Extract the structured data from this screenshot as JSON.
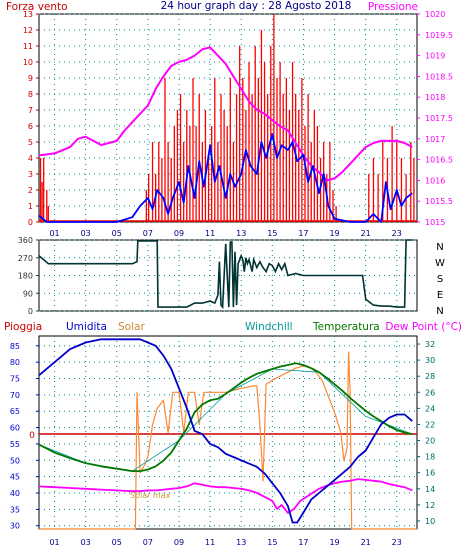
{
  "page": {
    "title": "24 hour graph day : 28 Agosto 2018",
    "background": "#ffffff"
  },
  "colors": {
    "wind": "#ff0000",
    "pressure": "#ff00ff",
    "avg_wind": "#0000ff",
    "direction": "#003333",
    "rain": "#cc0000",
    "humidity": "#0000cc",
    "solar": "#ff8833",
    "windchill": "#009999",
    "temperature": "#007700",
    "dewpoint": "#ff00ff",
    "grid": "#008888",
    "left_axis": "#cc0000",
    "right_axis_top": "#ff00ff",
    "right_axis_bottom": "#006666",
    "mid_axis": "#333333",
    "hour_axis": "#000088"
  },
  "hours": [
    "01",
    "03",
    "05",
    "07",
    "09",
    "11",
    "13",
    "15",
    "17",
    "19",
    "21",
    "23"
  ],
  "chart_data": [
    {
      "type": "line",
      "id": "wind_pressure",
      "title": "24 hour graph day : 28 Agosto 2018",
      "left_axis_label": "Forza vento",
      "right_axis_label": "Pressione",
      "left_ticks": [
        "0",
        "1",
        "2",
        "3",
        "4",
        "5",
        "6",
        "7",
        "8",
        "9",
        "10",
        "11",
        "12",
        "13"
      ],
      "right_ticks": [
        "1015",
        "1015.5",
        "1016",
        "1016.5",
        "1017",
        "1017.5",
        "1018",
        "1018.5",
        "1019",
        "1019.5",
        "1020"
      ],
      "x_range": [
        0,
        24.3
      ],
      "left_range": [
        0,
        13
      ],
      "right_range": [
        1015,
        1020
      ],
      "series": [
        {
          "name": "Pressione",
          "axis": "right",
          "x": [
            0,
            1,
            2,
            2.5,
            3,
            3.5,
            4,
            5,
            5.5,
            6,
            6.5,
            7,
            7.5,
            8,
            8.5,
            9,
            9.5,
            10,
            10.5,
            11,
            11.5,
            12,
            12.5,
            13,
            13.5,
            14,
            14.5,
            15,
            15.5,
            16,
            16.5,
            17,
            17.5,
            18,
            18.5,
            19,
            19.5,
            20,
            20.5,
            21,
            21.5,
            22,
            22.5,
            23,
            23.5,
            24
          ],
          "y": [
            1016.6,
            1016.65,
            1016.8,
            1017,
            1017.05,
            1016.95,
            1016.85,
            1016.95,
            1017.2,
            1017.4,
            1017.6,
            1017.8,
            1018.2,
            1018.5,
            1018.75,
            1018.85,
            1018.9,
            1019,
            1019.15,
            1019.2,
            1019,
            1018.8,
            1018.5,
            1018.2,
            1017.9,
            1017.7,
            1017.6,
            1017.45,
            1017.3,
            1017.2,
            1016.9,
            1016.6,
            1016.35,
            1016.2,
            1016,
            1016.05,
            1016.2,
            1016.4,
            1016.6,
            1016.8,
            1016.9,
            1016.95,
            1016.95,
            1016.95,
            1016.9,
            1016.8
          ]
        },
        {
          "name": "Vento medio",
          "axis": "left",
          "x": [
            0,
            0.5,
            1,
            2,
            3,
            4,
            5,
            6,
            6.5,
            7,
            7.3,
            7.6,
            8,
            8.3,
            8.6,
            9,
            9.3,
            9.6,
            10,
            10.3,
            10.6,
            11,
            11.3,
            11.6,
            12,
            12.3,
            12.6,
            13,
            13.3,
            13.6,
            14,
            14.3,
            14.6,
            15,
            15.3,
            15.6,
            16,
            16.3,
            16.6,
            17,
            17.3,
            17.6,
            18,
            18.3,
            18.6,
            19,
            20,
            21,
            21.5,
            22,
            22.3,
            22.6,
            23,
            23.3,
            23.6,
            24
          ],
          "y": [
            0.4,
            0,
            0,
            0,
            0,
            0,
            0,
            0.3,
            1,
            1.5,
            0.8,
            2,
            1.5,
            0.5,
            1.5,
            2.5,
            1.2,
            3.5,
            1.5,
            3.8,
            2.2,
            4.8,
            2.5,
            3.5,
            1.5,
            3,
            2.2,
            3,
            4.5,
            3.5,
            3,
            5,
            4,
            5.5,
            4,
            4.8,
            4.5,
            5,
            3.8,
            4.2,
            2.5,
            3.5,
            1.8,
            3,
            1,
            0.2,
            0,
            0,
            0.5,
            0,
            2.5,
            0.8,
            2,
            1,
            1.5,
            1.8
          ]
        },
        {
          "name": "Forza vento",
          "axis": "left",
          "style": "bars",
          "x": [
            0.1,
            0.2,
            0.3,
            0.5,
            0.6,
            6.9,
            7.05,
            7.3,
            7.5,
            7.7,
            7.9,
            8.1,
            8.3,
            8.5,
            8.7,
            8.9,
            9.1,
            9.3,
            9.5,
            9.7,
            9.9,
            10.1,
            10.3,
            10.5,
            10.7,
            10.9,
            11.1,
            11.3,
            11.5,
            11.7,
            11.9,
            12.1,
            12.3,
            12.5,
            12.7,
            12.9,
            13.1,
            13.3,
            13.5,
            13.7,
            13.9,
            14.1,
            14.3,
            14.5,
            14.7,
            14.9,
            15.1,
            15.3,
            15.5,
            15.7,
            15.9,
            16.1,
            16.3,
            16.5,
            16.7,
            16.9,
            17.1,
            17.3,
            17.5,
            17.7,
            17.9,
            18.1,
            18.3,
            18.5,
            18.7,
            18.9,
            19.1,
            21.2,
            21.5,
            21.8,
            22.1,
            22.4,
            22.7,
            23,
            23.3,
            23.6,
            23.9,
            24.1
          ],
          "y": [
            4,
            2.5,
            4,
            2,
            1,
            2,
            3,
            5,
            3,
            5,
            4,
            9,
            5,
            4,
            6,
            7,
            8,
            5,
            7,
            6,
            9,
            6,
            8,
            5,
            7,
            4,
            6,
            9,
            5,
            8,
            7,
            6,
            9,
            5,
            8,
            11,
            9,
            7,
            10,
            8,
            11,
            9,
            12,
            10,
            8,
            11,
            13,
            9,
            10,
            8,
            9,
            7,
            10,
            8,
            7,
            9,
            6,
            8,
            5,
            7,
            6,
            4,
            5,
            3,
            5,
            2,
            1,
            3,
            4,
            3,
            5,
            4,
            6,
            5,
            4,
            3,
            5,
            4
          ]
        }
      ]
    },
    {
      "type": "line",
      "id": "wind_direction",
      "left_ticks": [
        "0",
        "90",
        "180",
        "270",
        "360"
      ],
      "right_labels": [
        "N",
        "W",
        "S",
        "E",
        "N"
      ],
      "x_range": [
        0,
        24.3
      ],
      "y_range": [
        0,
        360
      ],
      "series": [
        {
          "name": "Direzione",
          "x": [
            0,
            0.3,
            0.6,
            1,
            2,
            3,
            4,
            5,
            5.5,
            6,
            6.3,
            6.35,
            7,
            7.5,
            7.6,
            7.65,
            8,
            9,
            9.5,
            10,
            10.5,
            11,
            11.3,
            11.5,
            11.6,
            11.7,
            11.8,
            12,
            12.2,
            12.3,
            12.4,
            12.5,
            12.6,
            12.7,
            12.8,
            12.9,
            13,
            13.1,
            13.2,
            13.3,
            13.4,
            13.5,
            13.6,
            13.7,
            13.8,
            14,
            14.2,
            14.4,
            14.6,
            14.8,
            15,
            15.2,
            15.4,
            15.6,
            15.8,
            16,
            16.5,
            17,
            17.5,
            18,
            18.5,
            19,
            19.5,
            20,
            20.5,
            20.8,
            21,
            21.5,
            22,
            22.5,
            23,
            23.5,
            23.6,
            24
          ],
          "y": [
            280,
            260,
            240,
            240,
            240,
            240,
            240,
            240,
            240,
            240,
            250,
            355,
            355,
            355,
            355,
            20,
            20,
            20,
            20,
            40,
            40,
            50,
            40,
            80,
            250,
            30,
            20,
            340,
            20,
            350,
            350,
            20,
            300,
            30,
            240,
            260,
            280,
            260,
            200,
            270,
            240,
            260,
            230,
            200,
            260,
            220,
            250,
            220,
            200,
            240,
            230,
            200,
            240,
            210,
            240,
            180,
            190,
            180,
            180,
            180,
            180,
            180,
            180,
            180,
            180,
            180,
            60,
            30,
            25,
            25,
            20,
            20,
            360,
            360
          ]
        }
      ]
    },
    {
      "type": "line",
      "id": "temperature_humidity",
      "labels": [
        "Pioggia",
        "Umidita",
        "Solar",
        "Windchill",
        "Temperatura",
        "Dew Point (°C)"
      ],
      "left_ticks": [
        "30",
        "35",
        "40",
        "45",
        "50",
        "55",
        "60",
        "65",
        "70",
        "75",
        "80",
        "85"
      ],
      "right_ticks": [
        "10",
        "12",
        "14",
        "16",
        "18",
        "20",
        "22",
        "24",
        "26",
        "28",
        "30",
        "32"
      ],
      "zero_label": "0",
      "solar_label": "Solar max",
      "x_range": [
        0,
        24.3
      ],
      "left_range": [
        29,
        88
      ],
      "right_range": [
        9,
        33
      ],
      "series": [
        {
          "name": "Umidita",
          "axis": "left",
          "x": [
            0,
            1,
            2,
            3,
            4,
            5,
            6,
            6.5,
            7,
            7.5,
            8,
            8.5,
            9,
            9.5,
            10,
            10.5,
            11,
            11.5,
            12,
            12.5,
            13,
            13.5,
            14,
            14.5,
            15,
            15.5,
            16,
            16.3,
            16.6,
            17,
            17.5,
            18,
            18.5,
            19,
            19.5,
            20,
            20.5,
            21,
            21.5,
            22,
            22.5,
            23,
            23.5,
            24
          ],
          "y": [
            76,
            80,
            84,
            86,
            87,
            87,
            87,
            87,
            86,
            85,
            82,
            78,
            72,
            66,
            59,
            58,
            55,
            54,
            52,
            51,
            50,
            49,
            48,
            46,
            43,
            40,
            36,
            31,
            31,
            34,
            38,
            40,
            42,
            44,
            46,
            48,
            51,
            53,
            57,
            61,
            63,
            64,
            64,
            62
          ]
        },
        {
          "name": "Temperatura",
          "axis": "right",
          "x": [
            0,
            1,
            2,
            3,
            4,
            5,
            6,
            6.5,
            7,
            7.5,
            8,
            8.5,
            9,
            9.5,
            10,
            10.5,
            11,
            11.5,
            12,
            12.5,
            13,
            13.5,
            14,
            14.5,
            15,
            15.5,
            16,
            16.5,
            17,
            17.5,
            18,
            18.5,
            19,
            19.5,
            20,
            20.5,
            21,
            21.5,
            22,
            22.5,
            23,
            23.5,
            24
          ],
          "y": [
            19.5,
            18.5,
            17.8,
            17.2,
            16.8,
            16.5,
            16.2,
            16.2,
            16.4,
            16.8,
            17.5,
            18.5,
            20,
            21.5,
            23.5,
            24.5,
            25,
            25.2,
            25.8,
            26.5,
            27.2,
            27.8,
            28.3,
            28.6,
            28.9,
            29.2,
            29.4,
            29.6,
            29.4,
            29,
            28.5,
            27.8,
            27,
            26.2,
            25.3,
            24.5,
            23.7,
            23,
            22.4,
            21.8,
            21.3,
            21,
            20.8
          ]
        },
        {
          "name": "Windchill",
          "axis": "right",
          "x": [
            0,
            3,
            6,
            9,
            12,
            15,
            18,
            21,
            24
          ],
          "y": [
            19.5,
            17.2,
            16.2,
            20,
            25.8,
            28.9,
            28.5,
            23,
            20.8
          ]
        },
        {
          "name": "Dew Point (°C)",
          "axis": "right",
          "x": [
            0,
            1,
            2,
            3,
            4,
            5,
            6,
            6.5,
            7,
            7.5,
            8,
            8.5,
            9,
            9.5,
            10,
            10.5,
            11,
            11.5,
            12,
            12.5,
            13,
            13.5,
            14,
            14.5,
            15,
            15.3,
            15.6,
            16,
            16.4,
            16.8,
            17.2,
            17.6,
            18,
            18.5,
            19,
            19.5,
            20,
            20.5,
            21,
            21.5,
            22,
            22.5,
            23,
            23.5,
            24
          ],
          "y": [
            14.3,
            14.2,
            14.1,
            14,
            13.9,
            13.8,
            13.7,
            13.7,
            13.8,
            13.8,
            13.9,
            14,
            14.1,
            14.3,
            14.7,
            14.5,
            14.3,
            14.2,
            14.2,
            14.1,
            14,
            13.8,
            13.5,
            13,
            12.5,
            11.5,
            12,
            11,
            11.5,
            12.5,
            13,
            13.5,
            14,
            14.4,
            14.7,
            14.9,
            15,
            15.2,
            15.1,
            15,
            14.9,
            14.6,
            14.4,
            14.2,
            13.8
          ]
        },
        {
          "name": "Solar",
          "axis": "right",
          "x": [
            0,
            6.2,
            6.3,
            6.5,
            6.8,
            7,
            7.3,
            7.6,
            8,
            8.3,
            8.6,
            9,
            9.3,
            9.6,
            10,
            10.3,
            10.6,
            11,
            12,
            13,
            13.8,
            14,
            14.2,
            14.4,
            14.6,
            15,
            15.5,
            16,
            16.5,
            17,
            17.5,
            17.8,
            18.2,
            18.6,
            19,
            19.4,
            19.6,
            19.8,
            19.9,
            20,
            20.1,
            24.3
          ],
          "y": [
            9,
            9,
            26,
            16,
            17,
            18,
            22,
            24,
            25,
            21,
            26,
            26,
            21,
            26,
            26,
            22,
            26,
            26,
            26,
            26.5,
            26.8,
            26.8,
            22,
            15,
            27,
            27.5,
            28,
            28.5,
            29,
            29.3,
            29,
            28.5,
            27.5,
            25.5,
            23.5,
            21,
            17.5,
            19,
            31,
            26,
            9,
            9
          ]
        }
      ]
    }
  ]
}
